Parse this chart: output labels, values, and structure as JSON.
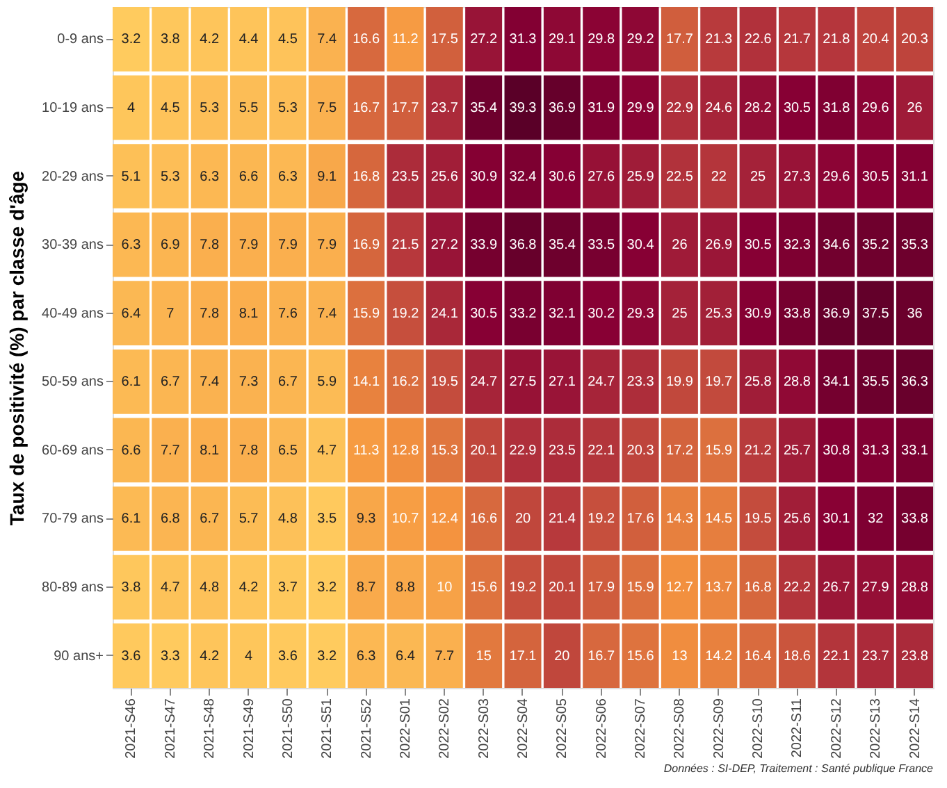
{
  "chart_data": {
    "type": "heatmap",
    "ylabel": "Taux de positivité (%) par classe d'âge",
    "categories": [
      "2021-S46",
      "2021-S47",
      "2021-S48",
      "2021-S49",
      "2021-S50",
      "2021-S51",
      "2021-S52",
      "2022-S01",
      "2022-S02",
      "2022-S03",
      "2022-S04",
      "2022-S05",
      "2022-S06",
      "2022-S07",
      "2022-S08",
      "2022-S09",
      "2022-S10",
      "2022-S11",
      "2022-S12",
      "2022-S13",
      "2022-S14"
    ],
    "y_categories": [
      "0-9 ans",
      "10-19 ans",
      "20-29 ans",
      "30-39 ans",
      "40-49 ans",
      "50-59 ans",
      "60-69 ans",
      "70-79 ans",
      "80-89 ans",
      "90 ans+"
    ],
    "cells": [
      [
        3.2,
        3.8,
        4.2,
        4.4,
        4.5,
        7.4,
        16.6,
        11.2,
        17.5,
        27.2,
        31.3,
        29.1,
        29.8,
        29.2,
        17.7,
        21.3,
        22.6,
        21.7,
        21.8,
        20.4,
        20.3
      ],
      [
        4,
        4.5,
        5.3,
        5.5,
        5.3,
        7.5,
        16.7,
        17.7,
        23.7,
        35.4,
        39.3,
        36.9,
        31.9,
        29.9,
        22.9,
        24.6,
        28.2,
        30.5,
        31.8,
        29.6,
        26
      ],
      [
        5.1,
        5.3,
        6.3,
        6.6,
        6.3,
        9.1,
        16.8,
        23.5,
        25.6,
        30.9,
        32.4,
        30.6,
        27.6,
        25.9,
        22.5,
        22,
        25,
        27.3,
        29.6,
        30.5,
        31.1
      ],
      [
        6.3,
        6.9,
        7.8,
        7.9,
        7.9,
        7.9,
        16.9,
        21.5,
        27.2,
        33.9,
        36.8,
        35.4,
        33.5,
        30.4,
        26,
        26.9,
        30.5,
        32.3,
        34.6,
        35.2,
        35.3
      ],
      [
        6.4,
        7,
        7.8,
        8.1,
        7.6,
        7.4,
        15.9,
        19.2,
        24.1,
        30.5,
        33.2,
        32.1,
        30.2,
        29.3,
        25,
        25.3,
        30.9,
        33.8,
        36.9,
        37.5,
        36
      ],
      [
        6.1,
        6.7,
        7.4,
        7.3,
        6.7,
        5.9,
        14.1,
        16.2,
        19.5,
        24.7,
        27.5,
        27.1,
        24.7,
        23.3,
        19.9,
        19.7,
        25.8,
        28.8,
        34.1,
        35.5,
        36.3
      ],
      [
        6.6,
        7.7,
        8.1,
        7.8,
        6.5,
        4.7,
        11.3,
        12.8,
        15.3,
        20.1,
        22.9,
        23.5,
        22.1,
        20.3,
        17.2,
        15.9,
        21.2,
        25.7,
        30.8,
        31.3,
        33.1
      ],
      [
        6.1,
        6.8,
        6.7,
        5.7,
        4.8,
        3.5,
        9.3,
        10.7,
        12.4,
        16.6,
        20,
        21.4,
        19.2,
        17.6,
        14.3,
        14.5,
        19.5,
        25.6,
        30.1,
        32,
        33.8
      ],
      [
        3.8,
        4.7,
        4.8,
        4.2,
        3.7,
        3.2,
        8.7,
        8.8,
        10,
        15.6,
        19.2,
        20.1,
        17.9,
        15.9,
        12.7,
        13.7,
        16.8,
        22.2,
        26.7,
        27.9,
        28.8
      ],
      [
        3.6,
        3.3,
        4.2,
        4,
        3.6,
        3.2,
        6.3,
        6.4,
        7.7,
        15,
        17.1,
        20,
        16.7,
        15.6,
        13,
        14.2,
        16.4,
        18.6,
        22.1,
        23.7,
        23.8
      ]
    ],
    "data_labels": true,
    "annotations": [
      "Données : SI-DEP, Traitement : Santé publique France"
    ]
  }
}
